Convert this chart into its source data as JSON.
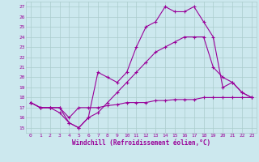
{
  "xlabel": "Windchill (Refroidissement éolien,°C)",
  "bg_color": "#cce8ee",
  "grid_color": "#aacccc",
  "line_color": "#990099",
  "xlim": [
    -0.5,
    23.5
  ],
  "ylim": [
    14.5,
    27.5
  ],
  "xticks": [
    0,
    1,
    2,
    3,
    4,
    5,
    6,
    7,
    8,
    9,
    10,
    11,
    12,
    13,
    14,
    15,
    16,
    17,
    18,
    19,
    20,
    21,
    22,
    23
  ],
  "yticks": [
    15,
    16,
    17,
    18,
    19,
    20,
    21,
    22,
    23,
    24,
    25,
    26,
    27
  ],
  "line1_x": [
    0,
    1,
    2,
    3,
    4,
    5,
    6,
    7,
    8,
    9,
    10,
    11,
    12,
    13,
    14,
    15,
    16,
    17,
    18,
    19,
    20,
    21,
    22,
    23
  ],
  "line1_y": [
    17.5,
    17.0,
    17.0,
    16.5,
    15.5,
    15.0,
    16.0,
    20.5,
    20.0,
    19.5,
    20.5,
    23.0,
    25.0,
    25.5,
    27.0,
    26.5,
    26.5,
    27.0,
    25.5,
    24.0,
    19.0,
    19.5,
    18.5,
    18.0
  ],
  "line2_x": [
    0,
    1,
    2,
    3,
    4,
    5,
    6,
    7,
    8,
    9,
    10,
    11,
    12,
    13,
    14,
    15,
    16,
    17,
    18,
    19,
    20,
    21,
    22,
    23
  ],
  "line2_y": [
    17.5,
    17.0,
    17.0,
    17.0,
    15.5,
    15.0,
    16.0,
    16.5,
    17.5,
    18.5,
    19.5,
    20.5,
    21.5,
    22.5,
    23.0,
    23.5,
    24.0,
    24.0,
    24.0,
    21.0,
    20.0,
    19.5,
    18.5,
    18.0
  ],
  "line3_x": [
    0,
    1,
    2,
    3,
    4,
    5,
    6,
    7,
    8,
    9,
    10,
    11,
    12,
    13,
    14,
    15,
    16,
    17,
    18,
    19,
    20,
    21,
    22,
    23
  ],
  "line3_y": [
    17.5,
    17.0,
    17.0,
    17.0,
    16.0,
    17.0,
    17.0,
    17.0,
    17.2,
    17.3,
    17.5,
    17.5,
    17.5,
    17.7,
    17.7,
    17.8,
    17.8,
    17.8,
    18.0,
    18.0,
    18.0,
    18.0,
    18.0,
    18.0
  ]
}
